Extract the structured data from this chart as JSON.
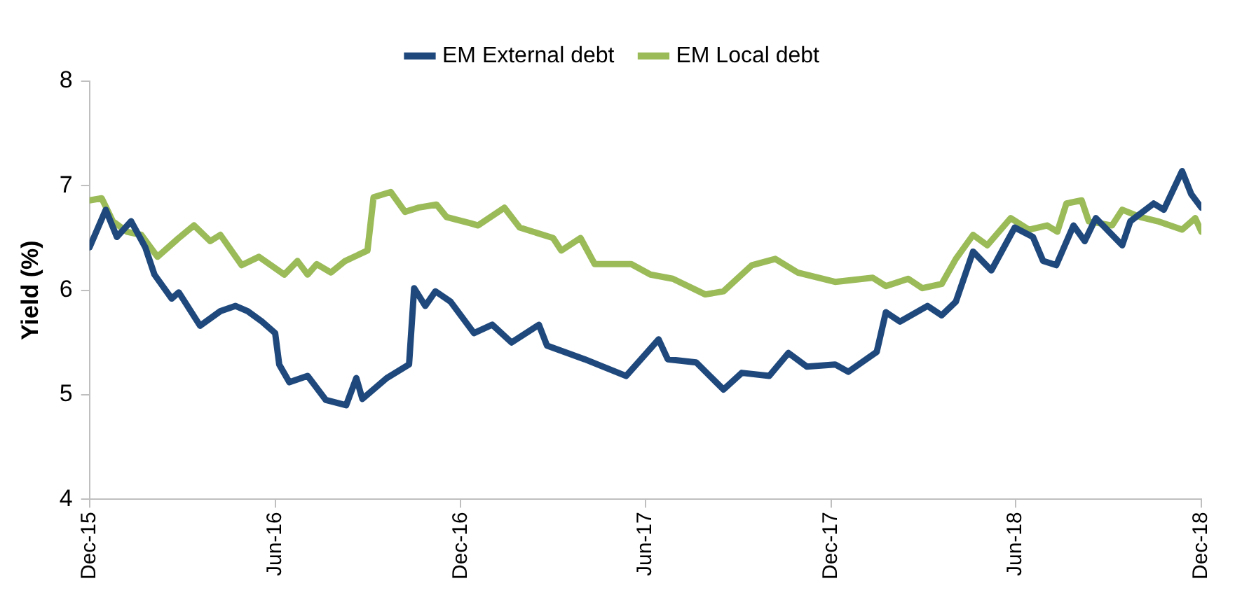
{
  "chart_data": {
    "type": "line",
    "ylabel": "Yield (%)",
    "xlim": [
      "2015-12-01",
      "2018-12-01"
    ],
    "xticks": [
      {
        "value": "2015-12-01",
        "label": "Dec-15"
      },
      {
        "value": "2016-06-01",
        "label": "Jun-16"
      },
      {
        "value": "2016-12-01",
        "label": "Dec-16"
      },
      {
        "value": "2017-06-01",
        "label": "Jun-17"
      },
      {
        "value": "2017-12-01",
        "label": "Dec-17"
      },
      {
        "value": "2018-06-01",
        "label": "Jun-18"
      },
      {
        "value": "2018-12-01",
        "label": "Dec-18"
      }
    ],
    "ylim": [
      4,
      8
    ],
    "yticks": [
      4,
      5,
      6,
      7,
      8
    ],
    "grid": false,
    "legend": "top",
    "marker": "none",
    "line_style": "solid",
    "series": [
      {
        "name": "EM External debt",
        "color": "#1f497d",
        "x": [
          "2015-12-01",
          "2015-12-17",
          "2015-12-28",
          "2016-01-11",
          "2016-01-25",
          "2016-02-03",
          "2016-02-20",
          "2016-02-27",
          "2016-03-19",
          "2016-04-08",
          "2016-04-23",
          "2016-05-05",
          "2016-05-19",
          "2016-06-01",
          "2016-06-05",
          "2016-06-15",
          "2016-07-03",
          "2016-07-21",
          "2016-08-10",
          "2016-08-20",
          "2016-08-26",
          "2016-09-19",
          "2016-10-11",
          "2016-10-16",
          "2016-10-27",
          "2016-11-06",
          "2016-11-21",
          "2016-12-14",
          "2017-01-01",
          "2017-01-20",
          "2017-02-16",
          "2017-02-24",
          "2017-04-02",
          "2017-05-13",
          "2017-06-14",
          "2017-06-23",
          "2017-07-21",
          "2017-08-17",
          "2017-09-04",
          "2017-10-01",
          "2017-10-20",
          "2017-11-07",
          "2017-12-05",
          "2017-12-18",
          "2018-01-15",
          "2018-01-24",
          "2018-02-07",
          "2018-03-06",
          "2018-03-20",
          "2018-04-03",
          "2018-04-20",
          "2018-05-08",
          "2018-05-31",
          "2018-06-18",
          "2018-06-28",
          "2018-07-11",
          "2018-07-28",
          "2018-08-08",
          "2018-08-19",
          "2018-09-14",
          "2018-09-22",
          "2018-10-15",
          "2018-10-25",
          "2018-11-12",
          "2018-11-21",
          "2018-12-01"
        ],
        "values": [
          6.41,
          6.77,
          6.51,
          6.66,
          6.41,
          6.15,
          5.92,
          5.98,
          5.66,
          5.8,
          5.85,
          5.8,
          5.7,
          5.59,
          5.29,
          5.12,
          5.18,
          4.95,
          4.9,
          5.16,
          4.96,
          5.16,
          5.29,
          6.02,
          5.85,
          5.99,
          5.89,
          5.59,
          5.67,
          5.5,
          5.67,
          5.47,
          5.34,
          5.18,
          5.53,
          5.34,
          5.31,
          5.05,
          5.21,
          5.18,
          5.4,
          5.27,
          5.29,
          5.22,
          5.41,
          5.79,
          5.7,
          5.85,
          5.76,
          5.89,
          6.37,
          6.19,
          6.6,
          6.51,
          6.28,
          6.24,
          6.62,
          6.47,
          6.69,
          6.43,
          6.66,
          6.83,
          6.77,
          7.14,
          6.92,
          6.79
        ]
      },
      {
        "name": "EM Local debt",
        "color": "#9bbb59",
        "x": [
          "2015-12-01",
          "2015-12-13",
          "2015-12-24",
          "2016-01-07",
          "2016-01-21",
          "2016-02-06",
          "2016-02-27",
          "2016-03-13",
          "2016-03-29",
          "2016-04-08",
          "2016-04-29",
          "2016-05-16",
          "2016-06-10",
          "2016-06-23",
          "2016-07-03",
          "2016-07-12",
          "2016-07-26",
          "2016-08-09",
          "2016-08-31",
          "2016-09-06",
          "2016-09-23",
          "2016-10-07",
          "2016-10-20",
          "2016-11-07",
          "2016-11-17",
          "2016-12-11",
          "2016-12-18",
          "2017-01-13",
          "2017-01-28",
          "2017-03-02",
          "2017-03-10",
          "2017-03-29",
          "2017-04-12",
          "2017-05-18",
          "2017-06-06",
          "2017-06-28",
          "2017-07-30",
          "2017-08-17",
          "2017-09-14",
          "2017-10-07",
          "2017-10-29",
          "2017-12-05",
          "2018-01-11",
          "2018-01-24",
          "2018-02-15",
          "2018-03-01",
          "2018-03-20",
          "2018-04-03",
          "2018-04-20",
          "2018-05-04",
          "2018-05-27",
          "2018-06-14",
          "2018-07-02",
          "2018-07-12",
          "2018-07-21",
          "2018-08-05",
          "2018-08-12",
          "2018-09-04",
          "2018-09-14",
          "2018-10-02",
          "2018-10-19",
          "2018-11-12",
          "2018-11-25",
          "2018-12-01"
        ],
        "values": [
          6.86,
          6.88,
          6.66,
          6.56,
          6.53,
          6.32,
          6.5,
          6.62,
          6.47,
          6.53,
          6.24,
          6.32,
          6.15,
          6.28,
          6.15,
          6.25,
          6.17,
          6.28,
          6.38,
          6.89,
          6.94,
          6.75,
          6.79,
          6.82,
          6.7,
          6.64,
          6.62,
          6.79,
          6.6,
          6.5,
          6.38,
          6.5,
          6.25,
          6.25,
          6.15,
          6.11,
          5.96,
          5.99,
          6.24,
          6.3,
          6.17,
          6.08,
          6.12,
          6.04,
          6.11,
          6.02,
          6.06,
          6.3,
          6.53,
          6.43,
          6.69,
          6.58,
          6.62,
          6.56,
          6.83,
          6.86,
          6.66,
          6.62,
          6.77,
          6.7,
          6.66,
          6.58,
          6.69,
          6.56
        ]
      }
    ]
  }
}
